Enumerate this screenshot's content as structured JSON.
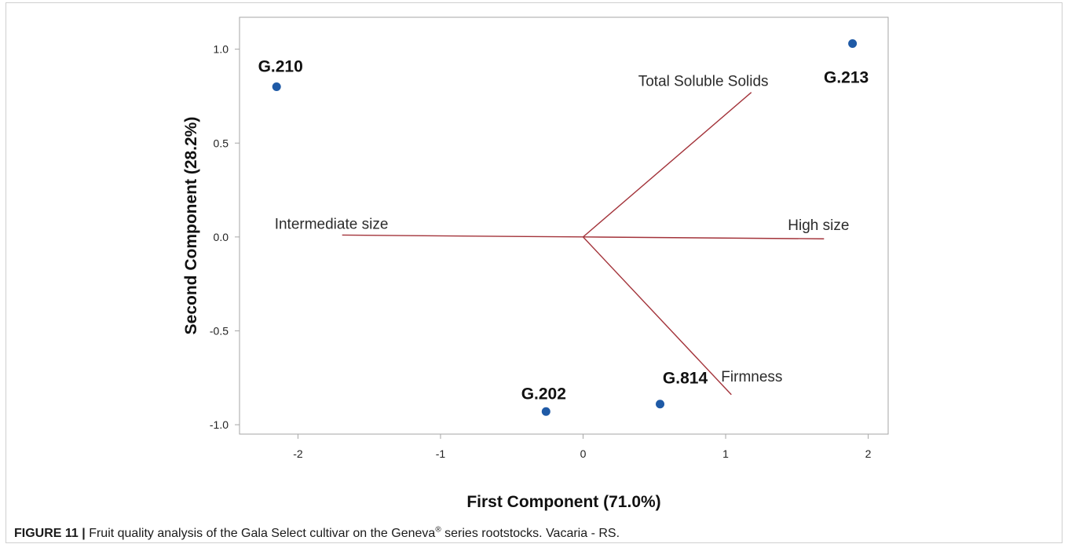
{
  "chart_data": {
    "type": "scatter",
    "xlabel": "First Component (71.0%)",
    "ylabel": "Second Component (28.2%)",
    "xlim": [
      -2.41,
      2.14
    ],
    "ylim": [
      -1.05,
      1.17
    ],
    "xticks": [
      -2,
      -1,
      0,
      1,
      2
    ],
    "xtick_labels": [
      "-2",
      "-1",
      "0",
      "1",
      "2"
    ],
    "yticks": [
      1.0,
      0.5,
      0.0,
      -0.5,
      -1.0
    ],
    "ytick_labels": [
      "1.0",
      "0.5",
      "0.0",
      "-0.5",
      "-1.0"
    ],
    "grid": false,
    "points": [
      {
        "label": "G.210",
        "x": -2.15,
        "y": 0.8
      },
      {
        "label": "G.213",
        "x": 1.89,
        "y": 1.03
      },
      {
        "label": "G.202",
        "x": -0.26,
        "y": -0.93
      },
      {
        "label": "G.814",
        "x": 0.54,
        "y": -0.89
      }
    ],
    "vectors": [
      {
        "label": "Total Soluble Solids",
        "x": 1.18,
        "y": 0.77
      },
      {
        "label": "High size",
        "x": 1.69,
        "y": -0.01
      },
      {
        "label": "Intermediate size",
        "x": -1.69,
        "y": 0.01
      },
      {
        "label": "Firmness",
        "x": 1.04,
        "y": -0.84
      }
    ],
    "colors": {
      "points": "#1f5aa6",
      "vectors": "#a3333a",
      "plot_frame": "#a6a6a6"
    }
  },
  "caption": {
    "label": "FIGURE 11 |",
    "text_before_sup": "Fruit quality analysis of the Gala Select cultivar on the Geneva",
    "sup": "®",
    "text_after_sup": " series rootstocks. Vacaria - RS."
  }
}
